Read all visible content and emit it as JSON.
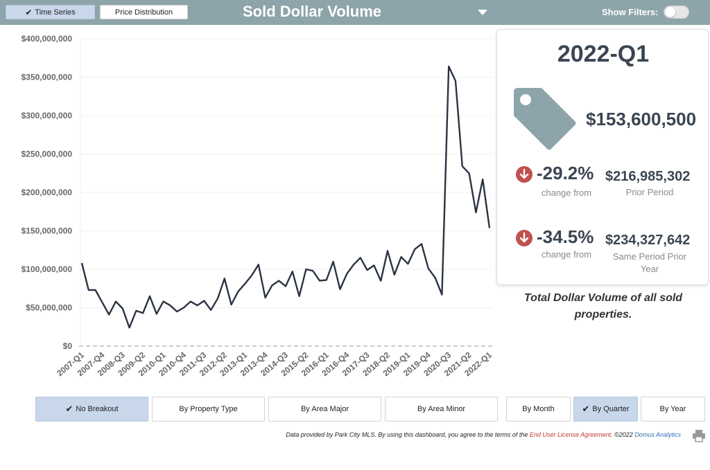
{
  "header": {
    "tabs": [
      {
        "label": "Time Series",
        "active": true
      },
      {
        "label": "Price Distribution",
        "active": false
      }
    ],
    "title": "Sold Dollar Volume",
    "filters_label": "Show Filters:",
    "filters_on": false,
    "colors": {
      "bar": "#8da4aa",
      "active_tab": "#c8d7ea"
    }
  },
  "summary": {
    "period": "2022-Q1",
    "value": "$153,600,500",
    "change_prior": {
      "pct": "-29.2%",
      "caption": "change from",
      "value": "$216,985,302",
      "value_caption": "Prior Period"
    },
    "change_year": {
      "pct": "-34.5%",
      "caption": "change from",
      "value": "$234,327,642",
      "value_caption": "Same Period Prior Year"
    },
    "icon": "price-tag-icon",
    "down_color": "#c0504d"
  },
  "caption": "Total Dollar Volume of all sold properties.",
  "breakout_buttons": [
    {
      "label": "No Breakout",
      "active": true
    },
    {
      "label": "By Property Type",
      "active": false
    },
    {
      "label": "By Area Major",
      "active": false
    },
    {
      "label": "By Area Minor",
      "active": false
    }
  ],
  "period_buttons": [
    {
      "label": "By Month",
      "active": false
    },
    {
      "label": "By Quarter",
      "active": true
    },
    {
      "label": "By Year",
      "active": false
    }
  ],
  "footer": {
    "text1": "Data provided by Park City MLS.  By using this dashboard, you agree to the terms of the ",
    "link1": "End User License Agreement",
    "text2": ".  ©2022 ",
    "link2": "Domus Analytics"
  },
  "chart_data": {
    "type": "line",
    "line_color": "#2b3342",
    "ylim": [
      0,
      400000000
    ],
    "y_ticks": [
      "$0",
      "$50,000,000",
      "$100,000,000",
      "$150,000,000",
      "$200,000,000",
      "$250,000,000",
      "$300,000,000",
      "$350,000,000",
      "$400,000,000"
    ],
    "x_tick_labels": [
      "2007-Q1",
      "2007-Q4",
      "2008-Q3",
      "2009-Q2",
      "2010-Q1",
      "2010-Q4",
      "2011-Q3",
      "2012-Q2",
      "2013-Q1",
      "2013-Q4",
      "2014-Q3",
      "2015-Q2",
      "2016-Q1",
      "2016-Q4",
      "2017-Q3",
      "2018-Q2",
      "2019-Q1",
      "2019-Q4",
      "2020-Q3",
      "2021-Q2",
      "2022-Q1"
    ],
    "x": [
      "2007-Q1",
      "2007-Q2",
      "2007-Q3",
      "2007-Q4",
      "2008-Q1",
      "2008-Q2",
      "2008-Q3",
      "2008-Q4",
      "2009-Q1",
      "2009-Q2",
      "2009-Q3",
      "2009-Q4",
      "2010-Q1",
      "2010-Q2",
      "2010-Q3",
      "2010-Q4",
      "2011-Q1",
      "2011-Q2",
      "2011-Q3",
      "2011-Q4",
      "2012-Q1",
      "2012-Q2",
      "2012-Q3",
      "2012-Q4",
      "2013-Q1",
      "2013-Q2",
      "2013-Q3",
      "2013-Q4",
      "2014-Q1",
      "2014-Q2",
      "2014-Q3",
      "2014-Q4",
      "2015-Q1",
      "2015-Q2",
      "2015-Q3",
      "2015-Q4",
      "2016-Q1",
      "2016-Q2",
      "2016-Q3",
      "2016-Q4",
      "2017-Q1",
      "2017-Q2",
      "2017-Q3",
      "2017-Q4",
      "2018-Q1",
      "2018-Q2",
      "2018-Q3",
      "2018-Q4",
      "2019-Q1",
      "2019-Q2",
      "2019-Q3",
      "2019-Q4",
      "2020-Q1",
      "2020-Q2",
      "2020-Q3",
      "2020-Q4",
      "2021-Q1",
      "2021-Q2",
      "2021-Q3",
      "2021-Q4",
      "2022-Q1"
    ],
    "values": [
      108000000,
      73000000,
      73000000,
      57000000,
      41000000,
      58000000,
      49000000,
      24000000,
      46000000,
      43000000,
      65000000,
      42000000,
      58000000,
      53000000,
      45000000,
      50000000,
      58000000,
      53000000,
      59000000,
      47000000,
      62000000,
      88000000,
      54000000,
      71000000,
      81000000,
      92000000,
      106000000,
      63000000,
      79000000,
      85000000,
      78000000,
      97000000,
      65000000,
      100000000,
      98000000,
      85000000,
      86000000,
      110000000,
      74000000,
      94000000,
      106000000,
      115000000,
      99000000,
      105000000,
      85000000,
      124000000,
      93000000,
      116000000,
      107000000,
      126000000,
      133000000,
      101000000,
      89000000,
      67000000,
      364000000,
      345000000,
      234000000,
      225000000,
      174000000,
      217000000,
      153600500
    ]
  }
}
